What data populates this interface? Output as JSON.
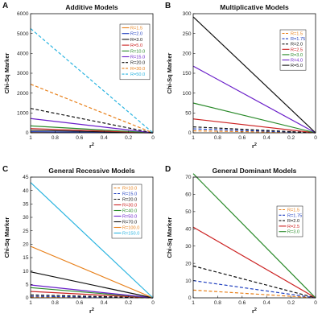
{
  "chart_data": [
    {
      "type": "line",
      "letter": "A",
      "title": "Additive Models",
      "xlabel": "r",
      "xlabel_sup": "2",
      "ylabel": "Chi-Sq Marker",
      "xlim": [
        1,
        0
      ],
      "ylim": [
        0,
        6000
      ],
      "xticks": [
        "1",
        "0.8",
        "0.6",
        "0.4",
        "0.2",
        "0"
      ],
      "xtick_values": [
        1,
        0.8,
        0.6,
        0.4,
        0.2,
        0
      ],
      "yticks": [
        "0",
        "1000",
        "2000",
        "3000",
        "4000",
        "5000",
        "6000"
      ],
      "ytick_values": [
        0,
        1000,
        2000,
        3000,
        4000,
        5000,
        6000
      ],
      "legend_position": "top-right",
      "series": [
        {
          "name": "R=1.5",
          "color": "#e8801a",
          "dash": "solid",
          "x": [
            1,
            0
          ],
          "y": [
            18,
            0
          ]
        },
        {
          "name": "R=2.0",
          "color": "#1f3fbf",
          "dash": "solid",
          "x": [
            1,
            0
          ],
          "y": [
            55,
            0
          ]
        },
        {
          "name": "R=3.0",
          "color": "#111111",
          "dash": "solid",
          "x": [
            1,
            0
          ],
          "y": [
            130,
            0
          ]
        },
        {
          "name": "R=5.0",
          "color": "#cc2222",
          "dash": "solid",
          "x": [
            1,
            0
          ],
          "y": [
            215,
            0
          ]
        },
        {
          "name": "R=10.0",
          "color": "#2a8a2a",
          "dash": "solid",
          "x": [
            1,
            0
          ],
          "y": [
            350,
            0
          ]
        },
        {
          "name": "R=15.0",
          "color": "#6a1fc9",
          "dash": "solid",
          "x": [
            1,
            0
          ],
          "y": [
            720,
            0
          ]
        },
        {
          "name": "R=20.0",
          "color": "#111111",
          "dash": "dashed",
          "x": [
            1,
            0
          ],
          "y": [
            1230,
            0
          ]
        },
        {
          "name": "R=30.0",
          "color": "#e8801a",
          "dash": "dashed",
          "x": [
            1,
            0
          ],
          "y": [
            2450,
            0
          ]
        },
        {
          "name": "R=50.0",
          "color": "#2ab4e0",
          "dash": "dashed",
          "x": [
            1,
            0
          ],
          "y": [
            5250,
            0
          ]
        }
      ]
    },
    {
      "type": "line",
      "letter": "B",
      "title": "Multiplicative Models",
      "xlabel": "r",
      "xlabel_sup": "2",
      "ylabel": "Chi-Sq Marker",
      "xlim": [
        1,
        0
      ],
      "ylim": [
        0,
        300
      ],
      "xticks": [
        "1",
        "0.8",
        "0.6",
        "0.4",
        "0.2",
        "0"
      ],
      "xtick_values": [
        1,
        0.8,
        0.6,
        0.4,
        0.2,
        0
      ],
      "yticks": [
        "0",
        "50",
        "100",
        "150",
        "200",
        "250",
        "300"
      ],
      "ytick_values": [
        0,
        50,
        100,
        150,
        200,
        250,
        300
      ],
      "legend_position": "top-right",
      "series": [
        {
          "name": "R=1.5",
          "color": "#e8801a",
          "dash": "dashed",
          "x": [
            1,
            0
          ],
          "y": [
            5,
            0
          ]
        },
        {
          "name": "R=1.75",
          "color": "#1f3fbf",
          "dash": "dashed",
          "x": [
            1,
            0
          ],
          "y": [
            10,
            0
          ]
        },
        {
          "name": "R=2.0",
          "color": "#111111",
          "dash": "dashed",
          "x": [
            1,
            0
          ],
          "y": [
            15,
            0
          ]
        },
        {
          "name": "R=2.5",
          "color": "#cc2222",
          "dash": "solid",
          "x": [
            1,
            0
          ],
          "y": [
            35,
            0
          ]
        },
        {
          "name": "R=3.0",
          "color": "#2a8a2a",
          "dash": "solid",
          "x": [
            1,
            0
          ],
          "y": [
            75,
            0
          ]
        },
        {
          "name": "R=4.0",
          "color": "#6a1fc9",
          "dash": "solid",
          "x": [
            1,
            0
          ],
          "y": [
            168,
            0
          ]
        },
        {
          "name": "R=5.0",
          "color": "#111111",
          "dash": "solid",
          "x": [
            1,
            0
          ],
          "y": [
            292,
            0
          ]
        }
      ]
    },
    {
      "type": "line",
      "letter": "C",
      "title": "General Recessive Models",
      "xlabel": "r",
      "xlabel_sup": "2",
      "ylabel": "Chi-Sq Marker",
      "xlim": [
        1,
        0
      ],
      "ylim": [
        0,
        45
      ],
      "xticks": [
        "1",
        "0.8",
        "0.6",
        "0.4",
        "0.2",
        "0"
      ],
      "xtick_values": [
        1,
        0.8,
        0.6,
        0.4,
        0.2,
        0
      ],
      "yticks": [
        "0",
        "5",
        "10",
        "15",
        "20",
        "25",
        "30",
        "35",
        "40",
        "45"
      ],
      "ytick_values": [
        0,
        5,
        10,
        15,
        20,
        25,
        30,
        35,
        40,
        45
      ],
      "legend_position": "top-right",
      "series": [
        {
          "name": "R=10.0",
          "color": "#e8801a",
          "dash": "dashed",
          "x": [
            1,
            0
          ],
          "y": [
            0.3,
            0
          ]
        },
        {
          "name": "R=15.0",
          "color": "#1f3fbf",
          "dash": "dashed",
          "x": [
            1,
            0
          ],
          "y": [
            0.6,
            0
          ]
        },
        {
          "name": "R=20.0",
          "color": "#111111",
          "dash": "dashed",
          "x": [
            1,
            0
          ],
          "y": [
            1.1,
            0
          ]
        },
        {
          "name": "R=30.0",
          "color": "#cc2222",
          "dash": "solid",
          "x": [
            1,
            0
          ],
          "y": [
            2.4,
            0
          ]
        },
        {
          "name": "R=40.0",
          "color": "#2a8a2a",
          "dash": "solid",
          "x": [
            1,
            0
          ],
          "y": [
            3.8,
            0
          ]
        },
        {
          "name": "R=50.0",
          "color": "#6a1fc9",
          "dash": "solid",
          "x": [
            1,
            0
          ],
          "y": [
            4.8,
            0
          ]
        },
        {
          "name": "R=70.0",
          "color": "#111111",
          "dash": "solid",
          "x": [
            1,
            0
          ],
          "y": [
            9.7,
            0
          ]
        },
        {
          "name": "R=100.0",
          "color": "#e8801a",
          "dash": "solid",
          "x": [
            1,
            0
          ],
          "y": [
            19.2,
            0
          ]
        },
        {
          "name": "R=150.0",
          "color": "#2ab4e0",
          "dash": "solid",
          "x": [
            1,
            0
          ],
          "y": [
            43,
            0
          ]
        }
      ]
    },
    {
      "type": "line",
      "letter": "D",
      "title": "General Dominant Models",
      "xlabel": "r",
      "xlabel_sup": "2",
      "ylabel": "Chi-Sq Marker",
      "xlim": [
        1,
        0
      ],
      "ylim": [
        0,
        70
      ],
      "xticks": [
        "1",
        "0.8",
        "0.6",
        "0.4",
        "0.2",
        "0"
      ],
      "xtick_values": [
        1,
        0.8,
        0.6,
        0.4,
        0.2,
        0
      ],
      "yticks": [
        "0",
        "10",
        "20",
        "30",
        "40",
        "50",
        "60",
        "70"
      ],
      "ytick_values": [
        0,
        10,
        20,
        30,
        40,
        50,
        60,
        70
      ],
      "legend_position": "top-right",
      "series": [
        {
          "name": "R=1.5",
          "color": "#e8801a",
          "dash": "dashed",
          "x": [
            1,
            0
          ],
          "y": [
            4.5,
            0
          ]
        },
        {
          "name": "R=1.75",
          "color": "#1f3fbf",
          "dash": "dashed",
          "x": [
            1,
            0
          ],
          "y": [
            10,
            0
          ]
        },
        {
          "name": "R=2.0",
          "color": "#111111",
          "dash": "dashed",
          "x": [
            1,
            0
          ],
          "y": [
            18.5,
            0
          ]
        },
        {
          "name": "R=2.5",
          "color": "#cc2222",
          "dash": "solid",
          "x": [
            1,
            0
          ],
          "y": [
            41,
            0
          ]
        },
        {
          "name": "R=3.0",
          "color": "#2a8a2a",
          "dash": "solid",
          "x": [
            1,
            0
          ],
          "y": [
            72,
            0
          ]
        }
      ]
    }
  ]
}
